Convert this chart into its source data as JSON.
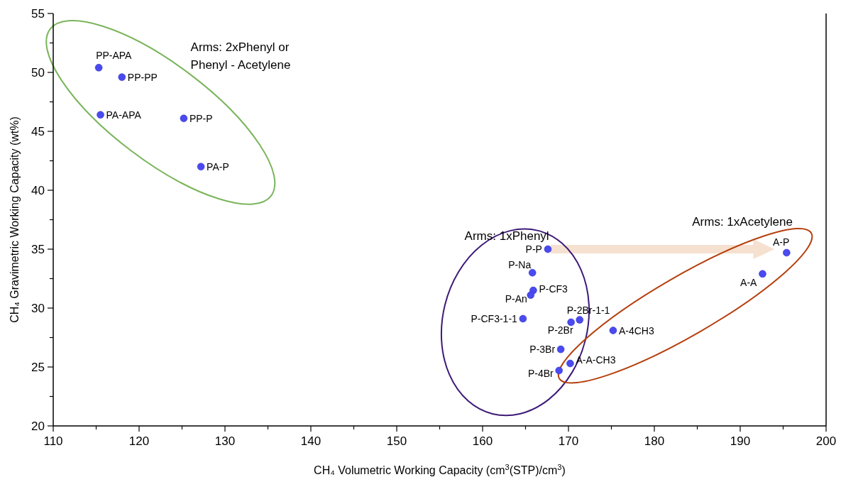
{
  "chart_data": {
    "type": "scatter",
    "xlabel": "CH₄ Volumetric Working Capacity (cm$^{3}$(STP)/cm$^{3}$)",
    "ylabel": "CH₄ Gravimetric Working Capacity (wt%)",
    "xlim": [
      110,
      200
    ],
    "xticks": [
      110,
      {
        "value": 115,
        "label": null
      },
      120,
      {
        "value": 125,
        "label": null
      },
      130,
      {
        "value": 135,
        "label": null
      },
      140,
      {
        "value": 145,
        "label": null
      },
      150,
      {
        "value": 155,
        "label": null
      },
      160,
      {
        "value": 165,
        "label": null
      },
      170,
      {
        "value": 175,
        "label": null
      },
      180,
      {
        "value": 185,
        "label": null
      },
      190,
      {
        "value": 195,
        "label": null
      },
      200
    ],
    "ylim": [
      20,
      55
    ],
    "yticks": [
      20,
      {
        "value": 22.5,
        "label": null
      },
      25,
      {
        "value": 27.5,
        "label": null
      },
      30,
      {
        "value": 32.5,
        "label": null
      },
      35,
      {
        "value": 37.5,
        "label": null
      },
      40,
      {
        "value": 42.5,
        "label": null
      },
      45,
      {
        "value": 47.5,
        "label": null
      },
      50,
      {
        "value": 52.5,
        "label": null
      },
      55
    ],
    "grid": false,
    "marker": "circle",
    "series": [
      {
        "color": "#4a4af0",
        "x": [
          115.3,
          118.0,
          115.5,
          125.2,
          127.2,
          167.6,
          165.8,
          165.9,
          165.6,
          164.7,
          170.3,
          171.3,
          169.1,
          170.2,
          168.9,
          175.2,
          195.4,
          192.6
        ],
        "values": [
          50.4,
          49.6,
          46.4,
          46.1,
          42.0,
          35.0,
          33.0,
          31.5,
          31.1,
          29.1,
          28.8,
          29.0,
          26.5,
          25.3,
          24.7,
          28.1,
          34.7,
          32.9
        ]
      }
    ],
    "annotations": [
      "Arms: 2xPhenyl or\nPhenyl - Acetylene",
      "Arms: 1xPhenyl",
      "Arms: 1xAcetylene",
      {
        "text": "PP-APA",
        "x": 115.3,
        "y": 50.4
      },
      {
        "text": "PP-PP",
        "x": 118.0,
        "y": 49.6
      },
      {
        "text": "PA-APA",
        "x": 115.5,
        "y": 46.4
      },
      {
        "text": "PP-P",
        "x": 125.2,
        "y": 46.1
      },
      {
        "text": "PA-P",
        "x": 127.2,
        "y": 42.0
      },
      {
        "text": "P-P",
        "x": 167.6,
        "y": 35.0
      },
      {
        "text": "P-Na",
        "x": 165.8,
        "y": 33.0
      },
      {
        "text": "P-CF3",
        "x": 165.9,
        "y": 31.5
      },
      {
        "text": "P-An",
        "x": 165.6,
        "y": 31.1
      },
      {
        "text": "P-CF3-1-1",
        "x": 164.7,
        "y": 29.1
      },
      {
        "text": "P-2Br",
        "x": 170.3,
        "y": 28.8
      },
      {
        "text": "P-2Br-1-1",
        "x": 171.3,
        "y": 29.0
      },
      {
        "text": "P-3Br",
        "x": 169.1,
        "y": 26.5
      },
      {
        "text": "A-A-CH3",
        "x": 170.2,
        "y": 25.3
      },
      {
        "text": "P-4Br",
        "x": 168.9,
        "y": 24.7
      },
      {
        "text": "A-4CH3",
        "x": 175.2,
        "y": 28.1
      },
      {
        "text": "A-P",
        "x": 195.4,
        "y": 34.7
      },
      {
        "text": "A-A",
        "x": 192.6,
        "y": 32.9
      }
    ]
  }
}
